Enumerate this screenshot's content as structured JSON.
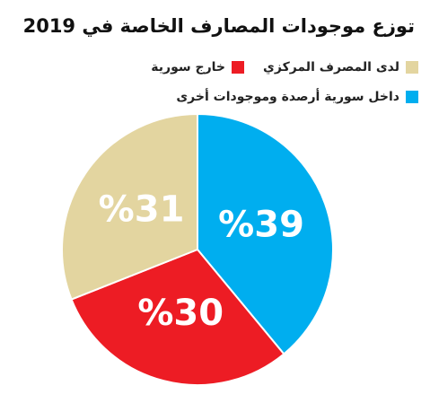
{
  "chart_data": {
    "type": "pie",
    "title": "توزع موجودات المصارف الخاصة في 2019",
    "categories": [
      "داخل سورية أرصدة وموجودات أخرى",
      "خارج سورية",
      "لدى المصرف المركزي"
    ],
    "values": [
      39,
      30,
      31
    ],
    "value_labels": [
      "%39",
      "%30",
      "%31"
    ],
    "colors": [
      "#00aeef",
      "#ed1c24",
      "#e3d5a0"
    ]
  }
}
